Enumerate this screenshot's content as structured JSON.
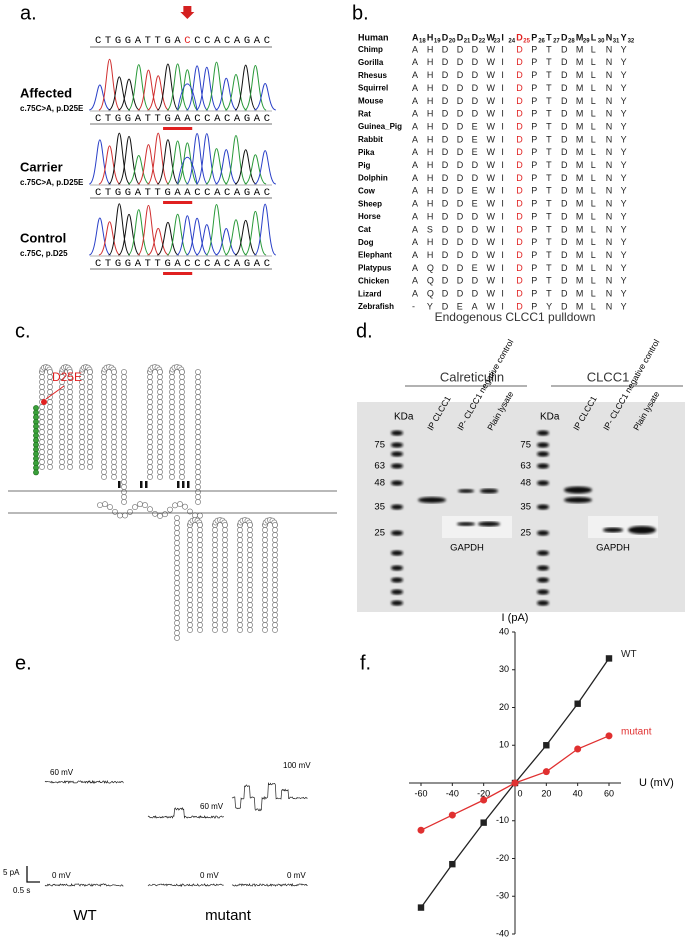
{
  "panel_a": {
    "label": "a.",
    "reference": "CTGGATTGACCCACAGAC",
    "rows": [
      {
        "genotype": "Affected",
        "variant": "c.75C>A, p.D25E",
        "sequence": "CTGGATTGAACCACAGAC"
      },
      {
        "genotype": "Carrier",
        "variant": "c.75C>A, p.D25E",
        "sequence": "CTGGATTGAACCACAGAC"
      },
      {
        "genotype": "Control",
        "variant": "c.75C, p.D25",
        "sequence": "CTGGATTGACCCACAGAC"
      }
    ]
  },
  "panel_b": {
    "label": "b.",
    "reference_species": "Human",
    "header": [
      {
        "residue": "A",
        "position": "18"
      },
      {
        "residue": "H",
        "position": "19"
      },
      {
        "residue": "D",
        "position": "20"
      },
      {
        "residue": "D",
        "position": "21"
      },
      {
        "residue": "D",
        "position": "22"
      },
      {
        "residue": "W",
        "position": "23"
      },
      {
        "residue": "I",
        "position": "24"
      },
      {
        "residue": "D",
        "position": "25"
      },
      {
        "residue": "P",
        "position": "26"
      },
      {
        "residue": "T",
        "position": "27"
      },
      {
        "residue": "D",
        "position": "28"
      },
      {
        "residue": "M",
        "position": "29"
      },
      {
        "residue": "L",
        "position": "30"
      },
      {
        "residue": "N",
        "position": "31"
      },
      {
        "residue": "Y",
        "position": "32"
      }
    ],
    "rows": [
      {
        "species": "Chimp",
        "residues": [
          "A",
          "H",
          "D",
          "D",
          "D",
          "W",
          "I",
          "D",
          "P",
          "T",
          "D",
          "M",
          "L",
          "N",
          "Y"
        ]
      },
      {
        "species": "Gorilla",
        "residues": [
          "A",
          "H",
          "D",
          "D",
          "D",
          "W",
          "I",
          "D",
          "P",
          "T",
          "D",
          "M",
          "L",
          "N",
          "Y"
        ]
      },
      {
        "species": "Rhesus",
        "residues": [
          "A",
          "H",
          "D",
          "D",
          "D",
          "W",
          "I",
          "D",
          "P",
          "T",
          "D",
          "M",
          "L",
          "N",
          "Y"
        ]
      },
      {
        "species": "Squirrel",
        "residues": [
          "A",
          "H",
          "D",
          "D",
          "D",
          "W",
          "I",
          "D",
          "P",
          "T",
          "D",
          "M",
          "L",
          "N",
          "Y"
        ]
      },
      {
        "species": "Mouse",
        "residues": [
          "A",
          "H",
          "D",
          "D",
          "D",
          "W",
          "I",
          "D",
          "P",
          "T",
          "D",
          "M",
          "L",
          "N",
          "Y"
        ]
      },
      {
        "species": "Rat",
        "residues": [
          "A",
          "H",
          "D",
          "D",
          "D",
          "W",
          "I",
          "D",
          "P",
          "T",
          "D",
          "M",
          "L",
          "N",
          "Y"
        ]
      },
      {
        "species": "Guinea_Pig",
        "residues": [
          "A",
          "H",
          "D",
          "D",
          "E",
          "W",
          "I",
          "D",
          "P",
          "T",
          "D",
          "M",
          "L",
          "N",
          "Y"
        ]
      },
      {
        "species": "Rabbit",
        "residues": [
          "A",
          "H",
          "D",
          "D",
          "E",
          "W",
          "I",
          "D",
          "P",
          "T",
          "D",
          "M",
          "L",
          "N",
          "Y"
        ]
      },
      {
        "species": "Pika",
        "residues": [
          "A",
          "H",
          "D",
          "D",
          "E",
          "W",
          "I",
          "D",
          "P",
          "T",
          "D",
          "M",
          "L",
          "N",
          "Y"
        ]
      },
      {
        "species": "Pig",
        "residues": [
          "A",
          "H",
          "D",
          "D",
          "D",
          "W",
          "I",
          "D",
          "P",
          "T",
          "D",
          "M",
          "L",
          "N",
          "Y"
        ]
      },
      {
        "species": "Dolphin",
        "residues": [
          "A",
          "H",
          "D",
          "D",
          "D",
          "W",
          "I",
          "D",
          "P",
          "T",
          "D",
          "M",
          "L",
          "N",
          "Y"
        ]
      },
      {
        "species": "Cow",
        "residues": [
          "A",
          "H",
          "D",
          "D",
          "E",
          "W",
          "I",
          "D",
          "P",
          "T",
          "D",
          "M",
          "L",
          "N",
          "Y"
        ]
      },
      {
        "species": "Sheep",
        "residues": [
          "A",
          "H",
          "D",
          "D",
          "E",
          "W",
          "I",
          "D",
          "P",
          "T",
          "D",
          "M",
          "L",
          "N",
          "Y"
        ]
      },
      {
        "species": "Horse",
        "residues": [
          "A",
          "H",
          "D",
          "D",
          "D",
          "W",
          "I",
          "D",
          "P",
          "T",
          "D",
          "M",
          "L",
          "N",
          "Y"
        ]
      },
      {
        "species": "Cat",
        "residues": [
          "A",
          "S",
          "D",
          "D",
          "D",
          "W",
          "I",
          "D",
          "P",
          "T",
          "D",
          "M",
          "L",
          "N",
          "Y"
        ]
      },
      {
        "species": "Dog",
        "residues": [
          "A",
          "H",
          "D",
          "D",
          "D",
          "W",
          "I",
          "D",
          "P",
          "T",
          "D",
          "M",
          "L",
          "N",
          "Y"
        ]
      },
      {
        "species": "Elephant",
        "residues": [
          "A",
          "H",
          "D",
          "D",
          "D",
          "W",
          "I",
          "D",
          "P",
          "T",
          "D",
          "M",
          "L",
          "N",
          "Y"
        ]
      },
      {
        "species": "Platypus",
        "residues": [
          "A",
          "Q",
          "D",
          "D",
          "E",
          "W",
          "I",
          "D",
          "P",
          "T",
          "D",
          "M",
          "L",
          "N",
          "Y"
        ]
      },
      {
        "species": "Chicken",
        "residues": [
          "A",
          "Q",
          "D",
          "D",
          "D",
          "W",
          "I",
          "D",
          "P",
          "T",
          "D",
          "M",
          "L",
          "N",
          "Y"
        ]
      },
      {
        "species": "Lizard",
        "residues": [
          "A",
          "Q",
          "D",
          "D",
          "D",
          "W",
          "I",
          "D",
          "P",
          "T",
          "D",
          "M",
          "L",
          "N",
          "Y"
        ]
      },
      {
        "species": "Zebrafish",
        "residues": [
          "-",
          "Y",
          "D",
          "E",
          "A",
          "W",
          "I",
          "D",
          "P",
          "Y",
          "D",
          "M",
          "L",
          "N",
          "Y"
        ]
      }
    ]
  },
  "panel_c": {
    "label": "c.",
    "mutation": "D25E"
  },
  "panel_d": {
    "label": "d.",
    "title": "Endogenous CLCC1 pulldown",
    "blots": [
      {
        "antibody": "Calreticulin",
        "marker_unit": "KDa",
        "markers": [
          75,
          63,
          48,
          35,
          25
        ],
        "lanes": [
          "IP CLCC1",
          "IP- CLCC1 negative control",
          "Plain lysate"
        ],
        "loading_control": "GAPDH"
      },
      {
        "antibody": "CLCC1",
        "marker_unit": "KDa",
        "markers": [
          75,
          63,
          48,
          35,
          25
        ],
        "lanes": [
          "IP CLCC1",
          "IP- CLCC1 negative control",
          "Plain lysate"
        ],
        "loading_control": "GAPDH"
      }
    ]
  },
  "panel_e": {
    "label": "e.",
    "scale": {
      "current": "5 pA",
      "time": "0.5 s"
    },
    "groups": [
      {
        "name": "WT",
        "traces": [
          "60 mV",
          "0 mV"
        ]
      },
      {
        "name": "mutant",
        "traces": [
          "60 mV",
          "100 mV",
          "0 mV",
          "0 mV"
        ]
      }
    ]
  },
  "chart_data": {
    "type": "line",
    "label": "f.",
    "ylabel": "I (pA)",
    "xlabel": "U (mV)",
    "x": [
      -60,
      -40,
      -20,
      0,
      20,
      40,
      60
    ],
    "series": [
      {
        "name": "WT",
        "color": "#222222",
        "marker": "square",
        "values": [
          -33,
          -21.5,
          -10.5,
          0,
          10,
          21,
          33
        ]
      },
      {
        "name": "mutant",
        "color": "#e03030",
        "marker": "circle",
        "values": [
          -12.5,
          -8.5,
          -4.5,
          0,
          3,
          9,
          12.5
        ]
      }
    ],
    "xlim": [
      -60,
      60
    ],
    "ylim": [
      -40,
      40
    ],
    "xticks": [
      -60,
      -40,
      -20,
      0,
      20,
      40,
      60
    ],
    "yticks": [
      -40,
      -30,
      -20,
      -10,
      10,
      20,
      30,
      40
    ]
  }
}
